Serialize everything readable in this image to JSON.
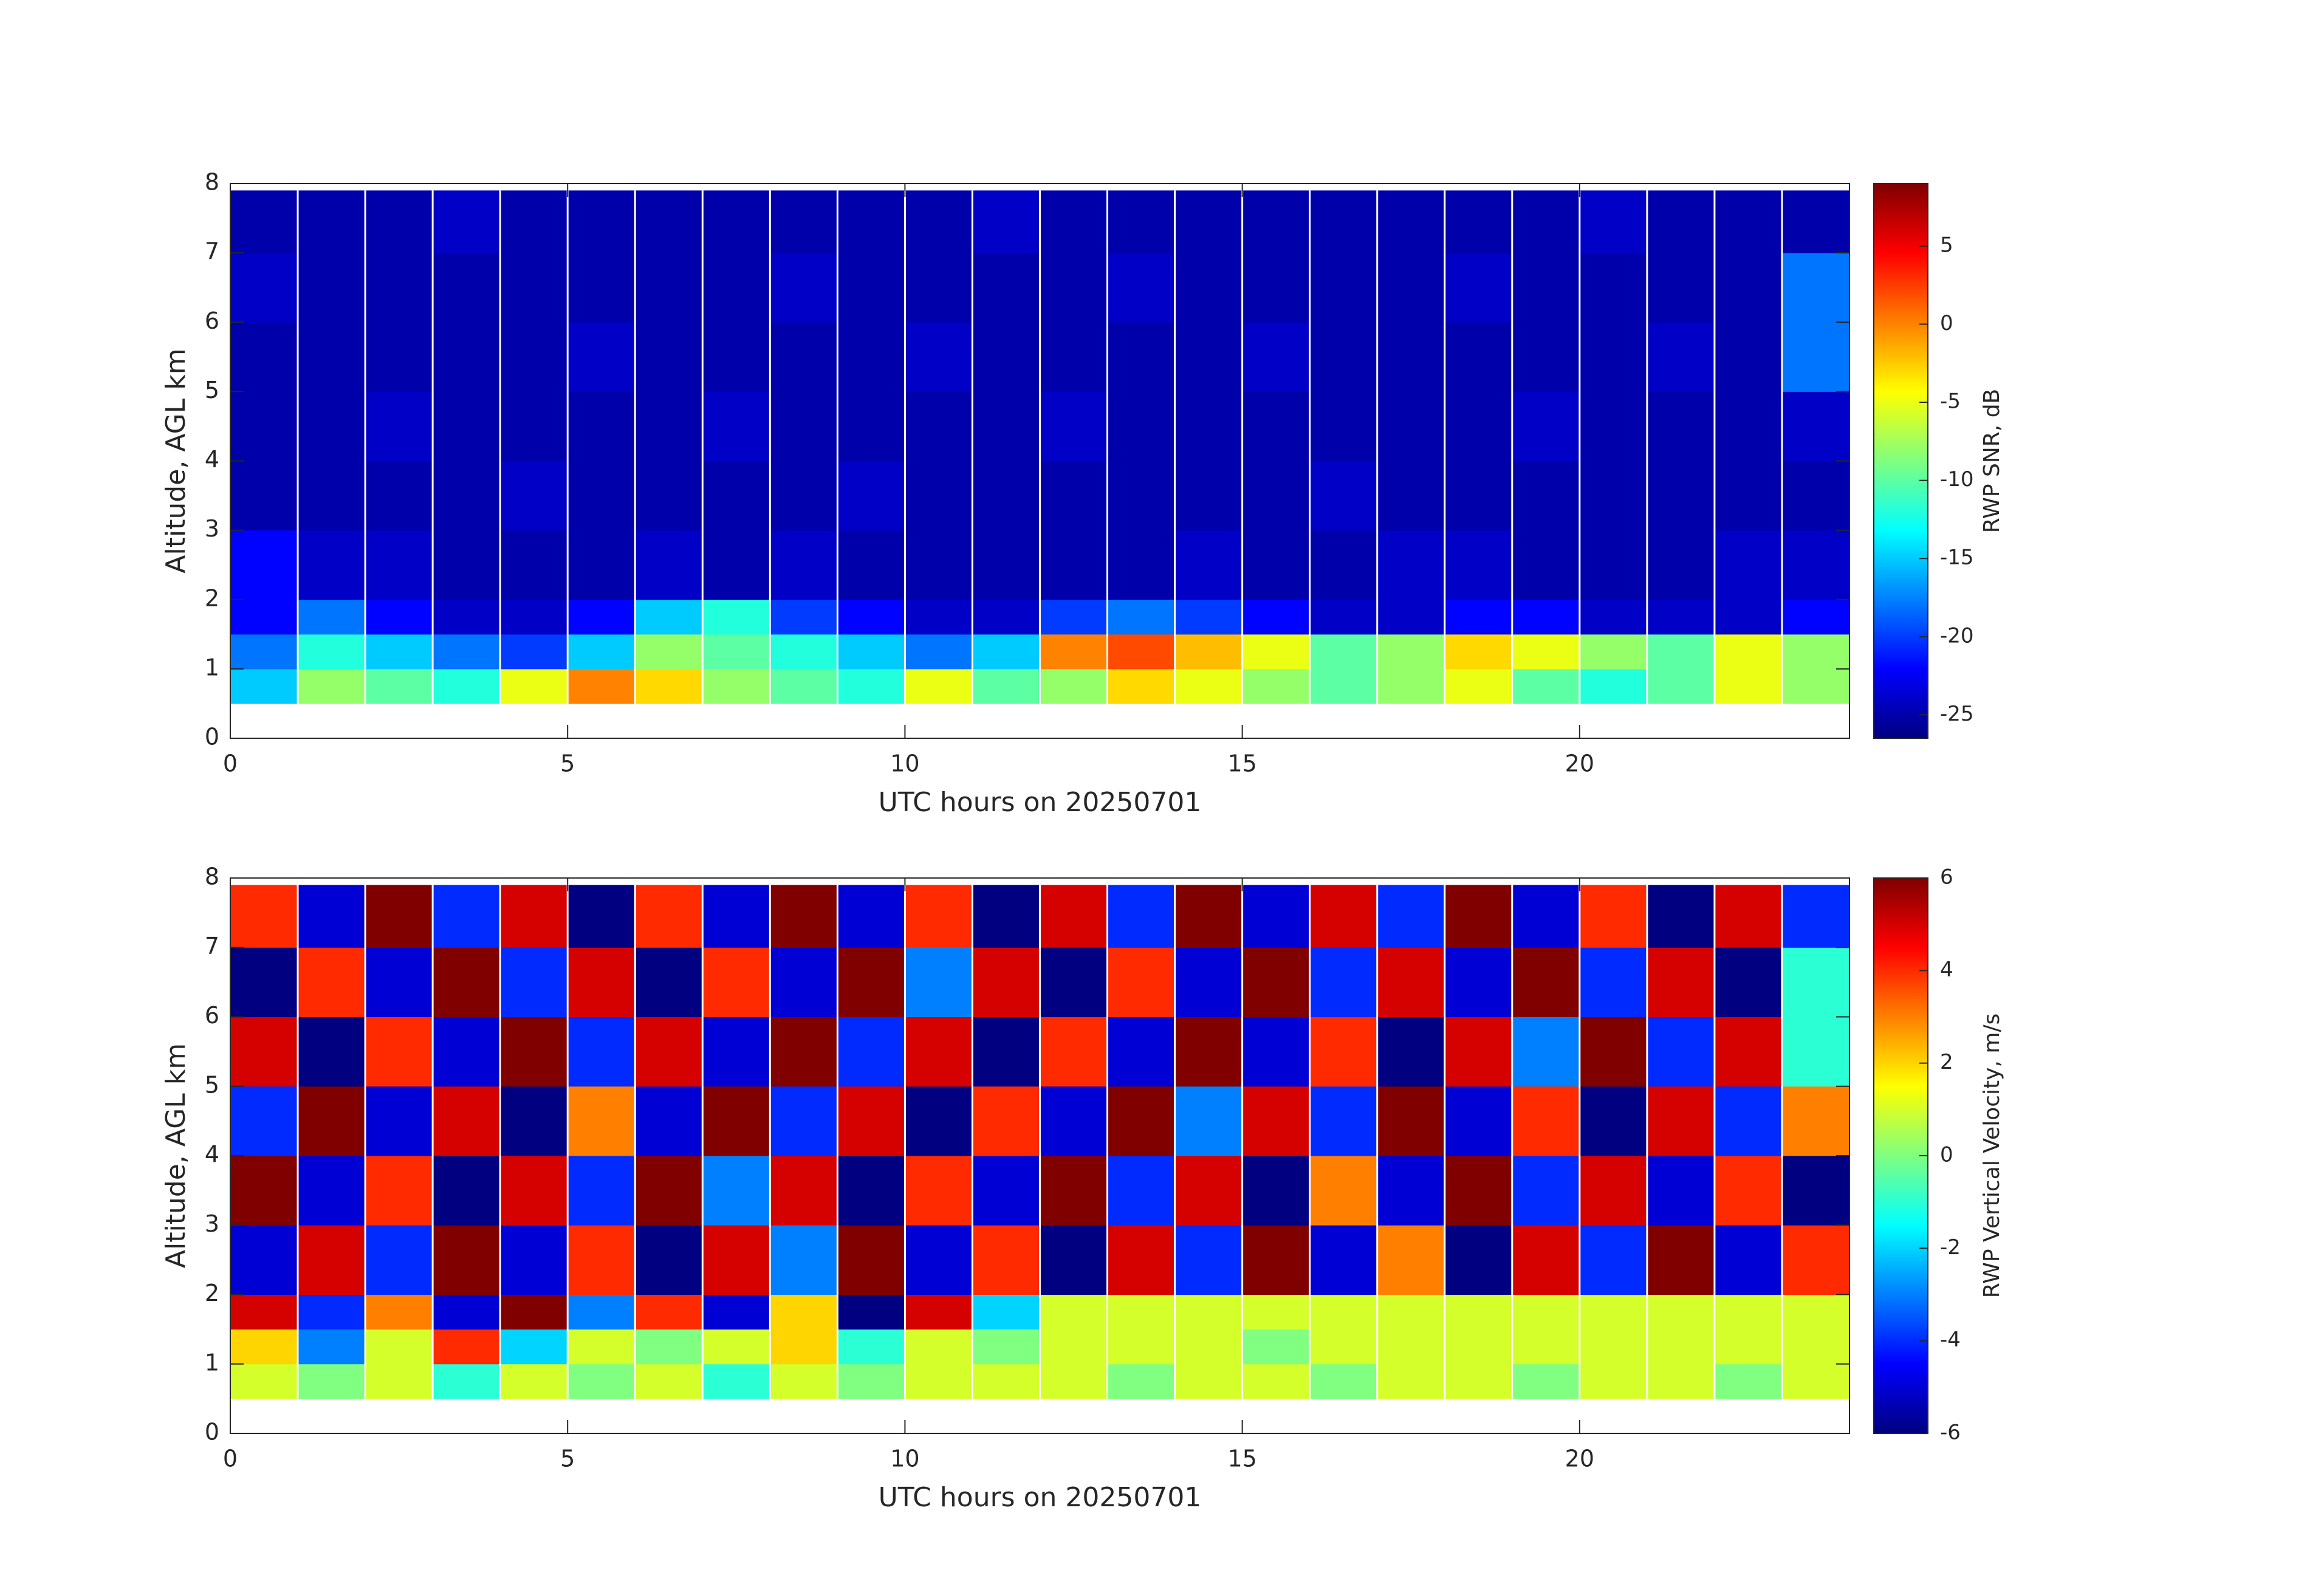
{
  "chart_data": [
    {
      "type": "heatmap",
      "xlabel": "UTC hours on 20250701",
      "ylabel": "Altitude, AGL km",
      "colorbar_label": "RWP SNR, dB",
      "colormap": "jet",
      "xlim": [
        0,
        24
      ],
      "xticks": [
        0,
        5,
        10,
        15,
        20
      ],
      "ylim": [
        0,
        8
      ],
      "yticks": [
        0,
        1,
        2,
        3,
        4,
        5,
        6,
        7,
        8
      ],
      "clim": [
        -26.5,
        9
      ],
      "cticks": [
        -25,
        -20,
        -15,
        -10,
        -5,
        0,
        5
      ],
      "x_bins": [
        0,
        1,
        2,
        3,
        4,
        5,
        6,
        7,
        8,
        9,
        10,
        11,
        12,
        13,
        14,
        15,
        16,
        17,
        18,
        19,
        20,
        21,
        22,
        23,
        24
      ],
      "y_bins": [
        0.5,
        1,
        1.5,
        2,
        3,
        4,
        5,
        6,
        7,
        7.9
      ],
      "values": [
        [
          -15,
          -8,
          -10,
          -12,
          -5,
          0,
          -3,
          -8,
          -10,
          -12,
          -5,
          -10,
          -8,
          -3,
          -5,
          -8,
          -10,
          -8,
          -5,
          -10,
          -12,
          -10,
          -5,
          -8
        ],
        [
          -18,
          -12,
          -15,
          -18,
          -20,
          -15,
          -8,
          -10,
          -12,
          -15,
          -18,
          -15,
          0,
          2,
          -2,
          -5,
          -10,
          -8,
          -3,
          -5,
          -8,
          -10,
          -5,
          -8
        ],
        [
          -22,
          -18,
          -22,
          -24,
          -24,
          -22,
          -15,
          -12,
          -20,
          -22,
          -24,
          -24,
          -20,
          -18,
          -20,
          -22,
          -24,
          -24,
          -22,
          -22,
          -24,
          -24,
          -24,
          -22
        ],
        [
          -22,
          -24,
          -24,
          -25,
          -25,
          -25,
          -24,
          -25,
          -24,
          -25,
          -25,
          -25,
          -25,
          -25,
          -24,
          -25,
          -25,
          -24,
          -24,
          -25,
          -25,
          -25,
          -24,
          -24
        ],
        [
          -25,
          -25,
          -25,
          -25,
          -24,
          -25,
          -25,
          -25,
          -25,
          -24,
          -25,
          -25,
          -25,
          -25,
          -25,
          -25,
          -24,
          -25,
          -25,
          -25,
          -25,
          -25,
          -25,
          -25
        ],
        [
          -25,
          -25,
          -24,
          -25,
          -25,
          -25,
          -25,
          -24,
          -25,
          -25,
          -25,
          -25,
          -24,
          -25,
          -25,
          -25,
          -25,
          -25,
          -25,
          -24,
          -25,
          -25,
          -25,
          -24
        ],
        [
          -25,
          -25,
          -25,
          -25,
          -25,
          -24,
          -25,
          -25,
          -25,
          -25,
          -24,
          -25,
          -25,
          -25,
          -25,
          -24,
          -25,
          -25,
          -25,
          -25,
          -25,
          -24,
          -25,
          -18
        ],
        [
          -24,
          -25,
          -25,
          -25,
          -25,
          -25,
          -25,
          -25,
          -24,
          -25,
          -25,
          -25,
          -25,
          -24,
          -25,
          -25,
          -25,
          -25,
          -24,
          -25,
          -25,
          -25,
          -25,
          -18
        ],
        [
          -25,
          -25,
          -25,
          -24,
          -25,
          -25,
          -25,
          -25,
          -25,
          -25,
          -25,
          -24,
          -25,
          -25,
          -25,
          -25,
          -25,
          -25,
          -25,
          -25,
          -24,
          -25,
          -25,
          -25
        ]
      ]
    },
    {
      "type": "heatmap",
      "xlabel": "UTC hours on 20250701",
      "ylabel": "Altitude, AGL km",
      "colorbar_label": "RWP Vertical Velocity, m/s",
      "colormap": "jet",
      "xlim": [
        0,
        24
      ],
      "xticks": [
        0,
        5,
        10,
        15,
        20
      ],
      "ylim": [
        0,
        8
      ],
      "yticks": [
        0,
        1,
        2,
        3,
        4,
        5,
        6,
        7,
        8
      ],
      "clim": [
        -6,
        6
      ],
      "cticks": [
        -6,
        -4,
        -2,
        0,
        2,
        4,
        6
      ],
      "x_bins": [
        0,
        1,
        2,
        3,
        4,
        5,
        6,
        7,
        8,
        9,
        10,
        11,
        12,
        13,
        14,
        15,
        16,
        17,
        18,
        19,
        20,
        21,
        22,
        23,
        24
      ],
      "y_bins": [
        0.5,
        1,
        1.5,
        2,
        3,
        4,
        5,
        6,
        7,
        7.9
      ],
      "values": [
        [
          1,
          0,
          1,
          -1,
          1,
          0,
          1,
          -1,
          1,
          0,
          1,
          1,
          1,
          0,
          1,
          1,
          0,
          1,
          1,
          0,
          1,
          1,
          0,
          1
        ],
        [
          2,
          -3,
          1,
          4,
          -2,
          1,
          0,
          1,
          2,
          -1,
          1,
          0,
          1,
          1,
          1,
          0,
          1,
          1,
          1,
          1,
          1,
          1,
          1,
          1
        ],
        [
          5,
          -4,
          3,
          -5,
          6,
          -3,
          4,
          -5,
          2,
          -6,
          5,
          -2,
          1,
          1,
          1,
          1,
          1,
          1,
          1,
          1,
          1,
          1,
          1,
          1
        ],
        [
          -5,
          5,
          -4,
          6,
          -5,
          4,
          -6,
          5,
          -3,
          6,
          -5,
          4,
          -6,
          5,
          -4,
          6,
          -5,
          3,
          -6,
          5,
          -4,
          6,
          -5,
          4
        ],
        [
          6,
          -5,
          4,
          -6,
          5,
          -4,
          6,
          -3,
          5,
          -6,
          4,
          -5,
          6,
          -4,
          5,
          -6,
          3,
          -5,
          6,
          -4,
          5,
          -5,
          4,
          -6
        ],
        [
          -4,
          6,
          -5,
          5,
          -6,
          3,
          -5,
          6,
          -4,
          5,
          -6,
          4,
          -5,
          6,
          -3,
          5,
          -4,
          6,
          -5,
          4,
          -6,
          5,
          -4,
          3
        ],
        [
          5,
          -6,
          4,
          -5,
          6,
          -4,
          5,
          -5,
          6,
          -4,
          5,
          -6,
          4,
          -5,
          6,
          -5,
          4,
          -6,
          5,
          -3,
          6,
          -4,
          5,
          -1
        ],
        [
          -6,
          4,
          -5,
          6,
          -4,
          5,
          -6,
          4,
          -5,
          6,
          -3,
          5,
          -6,
          4,
          -5,
          6,
          -4,
          5,
          -5,
          6,
          -4,
          5,
          -6,
          -1
        ],
        [
          4,
          -5,
          6,
          -4,
          5,
          -6,
          4,
          -5,
          6,
          -5,
          4,
          -6,
          5,
          -4,
          6,
          -5,
          5,
          -4,
          6,
          -5,
          4,
          -6,
          5,
          -4
        ]
      ]
    }
  ]
}
